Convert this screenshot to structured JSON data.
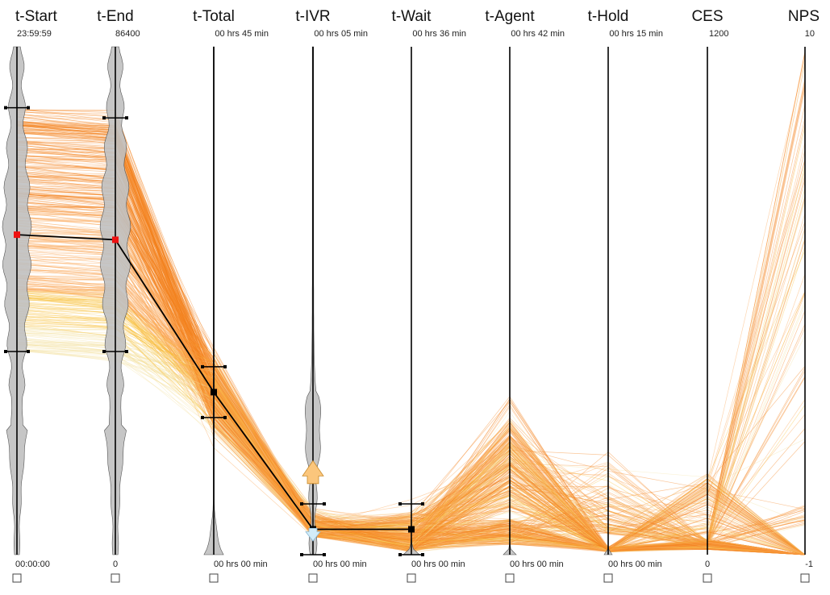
{
  "chart_data": {
    "type": "parallel_coordinates",
    "axes": [
      {
        "name": "t-Start",
        "max": "23:59:59",
        "min": "00:00:00"
      },
      {
        "name": "t-End",
        "max": "86400",
        "min": "0"
      },
      {
        "name": "t-Total",
        "max": "00 hrs 45 min",
        "min": "00 hrs 00 min"
      },
      {
        "name": "t-IVR",
        "max": "00 hrs 05 min",
        "min": "00 hrs 00 min"
      },
      {
        "name": "t-Wait",
        "max": "00 hrs 36 min",
        "min": "00 hrs 00 min"
      },
      {
        "name": "t-Agent",
        "max": "00 hrs 42 min",
        "min": "00 hrs 00 min"
      },
      {
        "name": "t-Hold",
        "max": "00 hrs 15 min",
        "min": "00 hrs 00 min"
      },
      {
        "name": "CES",
        "max": "1200",
        "min": "0"
      },
      {
        "name": "NPS",
        "max": "10",
        "min": "-1"
      }
    ],
    "highlighted_record": [
      0.63,
      0.62,
      0.32,
      0.05,
      0.05,
      null,
      null,
      null,
      null
    ],
    "brushes": [
      {
        "axis": "t-Start",
        "range": [
          0.4,
          0.88
        ]
      },
      {
        "axis": "t-End",
        "range": [
          0.4,
          0.86
        ]
      },
      {
        "axis": "t-Total",
        "range": [
          0.27,
          0.37
        ]
      },
      {
        "axis": "t-IVR",
        "range": [
          0.0,
          0.1
        ]
      },
      {
        "axis": "t-Wait",
        "range": [
          0.0,
          0.1
        ]
      }
    ],
    "colors": {
      "lines_high": "#f58220",
      "lines_mid": "#f9c23c",
      "lines_low": "#a6d7ee",
      "density": "#c0c0c0",
      "highlight": "#000000",
      "selected_point": "#ee1111",
      "arrow_up": "#fbc67c",
      "arrow_down": "#d3ecf8"
    }
  }
}
